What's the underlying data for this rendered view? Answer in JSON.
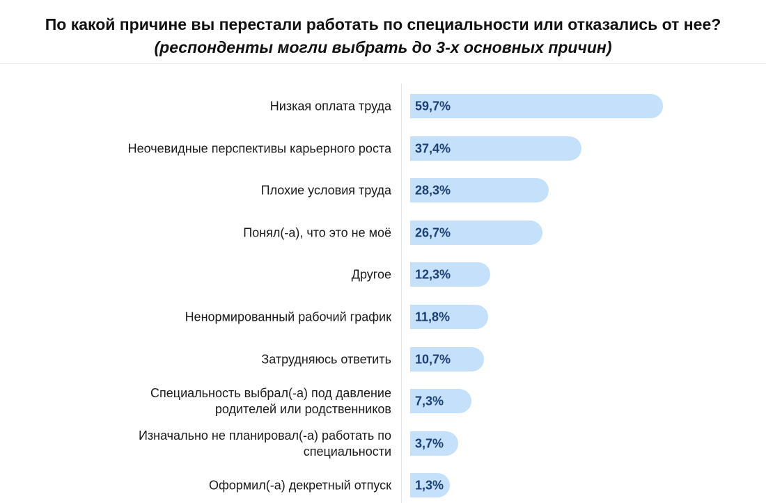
{
  "chart_data": {
    "type": "bar",
    "orientation": "horizontal",
    "title": "По какой причине вы перестали работать по специальности или отказались от нее?",
    "subtitle": "(респонденты могли выбрать до 3-х основных причин)",
    "categories": [
      "Низкая оплата труда",
      "Неочевидные перспективы карьерного роста",
      "Плохие условия труда",
      "Понял(-а), что это не моё",
      "Другое",
      "Ненормированный рабочий график",
      "Затрудняюсь ответить",
      "Специальность выбрал(-а) под давление родителей или родственников",
      "Изначально не планировал(-а) работать по специальности",
      "Оформил(-а) декретный отпуск"
    ],
    "values": [
      59.7,
      37.4,
      28.3,
      26.7,
      12.3,
      11.8,
      10.7,
      7.3,
      3.7,
      1.3
    ],
    "value_labels": [
      "59,7%",
      "37,4%",
      "28,3%",
      "26,7%",
      "12,3%",
      "11,8%",
      "10,7%",
      "7,3%",
      "3,7%",
      "1,3%"
    ],
    "unit": "%",
    "grid": false,
    "legend": "none",
    "colors": {
      "bar": "#c5e0fb",
      "value_text": "#1c3f75"
    }
  }
}
